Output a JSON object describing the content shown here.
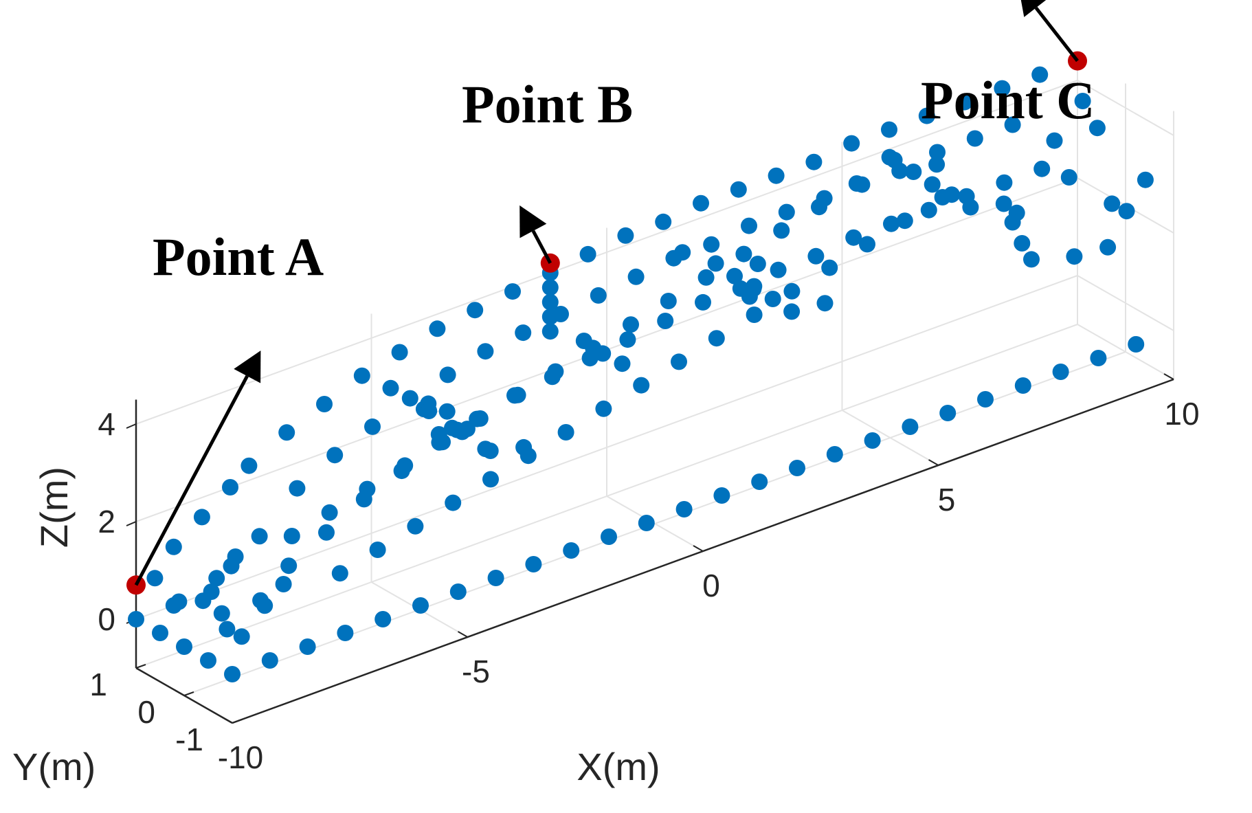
{
  "chart_data": {
    "type": "scatter3d",
    "xlabel": "X(m)",
    "ylabel": "Y(m)",
    "zlabel": "Z(m)",
    "xlim": [
      -10,
      10
    ],
    "ylim": [
      -1,
      1
    ],
    "zlim": [
      -1,
      4.5
    ],
    "xticks": [
      "-10",
      "-5",
      "0",
      "5",
      "10"
    ],
    "yticks": [
      "-1",
      "0",
      "1"
    ],
    "zticks": [
      "0",
      "2",
      "4"
    ],
    "grid": true,
    "marker_color": "#0072BD",
    "highlight_color": "#C00000",
    "annotations": [
      {
        "label": "Point A",
        "x": -10,
        "y": 1,
        "z": 0.7
      },
      {
        "label": "Point B",
        "x": -1.2,
        "y": 1,
        "z": 4.2
      },
      {
        "label": "Point C",
        "x": 10,
        "y": 1,
        "z": 4.4
      }
    ],
    "points": [
      [
        -10,
        1,
        0
      ],
      [
        -10,
        0.5,
        0
      ],
      [
        -10,
        0,
        0
      ],
      [
        -10,
        -0.5,
        0
      ],
      [
        -10,
        -1,
        0
      ],
      [
        -9.2,
        1,
        0
      ],
      [
        -9.2,
        -1,
        0
      ],
      [
        -8.4,
        1,
        0
      ],
      [
        -8.4,
        -1,
        0
      ],
      [
        -9.6,
        1,
        0.7
      ],
      [
        -9.2,
        1,
        1.2
      ],
      [
        -8.6,
        1,
        1.6
      ],
      [
        -8.0,
        1,
        2.0
      ],
      [
        -9.8,
        -1,
        0.7
      ],
      [
        -9.4,
        -1,
        1.3
      ],
      [
        -8.8,
        -1,
        1.8
      ],
      [
        -9.6,
        0,
        0.8
      ],
      [
        -9.0,
        0,
        1.3
      ],
      [
        -8.4,
        0,
        1.7
      ],
      [
        -9.6,
        0.5,
        0.5
      ],
      [
        -9.6,
        -0.5,
        0.5
      ],
      [
        -9.2,
        0,
        0.4
      ],
      [
        -8.8,
        0.5,
        0.7
      ],
      [
        -8.8,
        -0.5,
        0.7
      ],
      [
        -8.4,
        0.5,
        1.0
      ],
      [
        -8.4,
        -0.5,
        1.0
      ],
      [
        -7.6,
        -1,
        0
      ],
      [
        -6.8,
        -1,
        0
      ],
      [
        -6.0,
        -1,
        0
      ],
      [
        -5.2,
        -1,
        0
      ],
      [
        -4.4,
        -1,
        0
      ],
      [
        -3.6,
        -1,
        0
      ],
      [
        -2.8,
        -1,
        0
      ],
      [
        -2.0,
        -1,
        0
      ],
      [
        -1.2,
        -1,
        0
      ],
      [
        -0.4,
        -1,
        0
      ],
      [
        0.4,
        -1,
        0
      ],
      [
        1.2,
        -1,
        0
      ],
      [
        2.0,
        -1,
        0
      ],
      [
        2.8,
        -1,
        0
      ],
      [
        3.6,
        -1,
        0
      ],
      [
        4.4,
        -1,
        0
      ],
      [
        5.2,
        -1,
        0
      ],
      [
        6.0,
        -1,
        0
      ],
      [
        6.8,
        -1,
        0
      ],
      [
        7.6,
        -1,
        0
      ],
      [
        8.4,
        -1,
        0
      ],
      [
        9.2,
        -1,
        0
      ],
      [
        -7.6,
        1,
        2.3
      ],
      [
        -6.8,
        1,
        2.7
      ],
      [
        -6.0,
        1,
        3.0
      ],
      [
        -5.2,
        1,
        3.3
      ],
      [
        -4.4,
        1,
        3.5
      ],
      [
        -3.6,
        1,
        3.7
      ],
      [
        -2.8,
        1,
        3.8
      ],
      [
        -2.0,
        1,
        3.9
      ],
      [
        -1.2,
        1,
        4.0
      ],
      [
        -0.4,
        1,
        4.1
      ],
      [
        0.4,
        1,
        4.2
      ],
      [
        1.2,
        1,
        4.2
      ],
      [
        2.0,
        1,
        4.3
      ],
      [
        2.8,
        1,
        4.3
      ],
      [
        3.6,
        1,
        4.3
      ],
      [
        4.4,
        1,
        4.3
      ],
      [
        5.2,
        1,
        4.4
      ],
      [
        6.0,
        1,
        4.4
      ],
      [
        6.8,
        1,
        4.4
      ],
      [
        7.6,
        1,
        4.4
      ],
      [
        8.4,
        1,
        4.4
      ],
      [
        9.2,
        1,
        4.4
      ],
      [
        -8.0,
        -1,
        2.2
      ],
      [
        -7.2,
        -1,
        2.6
      ],
      [
        -6.4,
        -1,
        2.9
      ],
      [
        -5.6,
        -1,
        3.2
      ],
      [
        -4.8,
        -1,
        3.4
      ],
      [
        -4.0,
        -1,
        3.6
      ],
      [
        -3.2,
        -1,
        3.7
      ],
      [
        -2.4,
        -1,
        3.8
      ],
      [
        -1.6,
        -1,
        3.9
      ],
      [
        -0.8,
        -1,
        4.0
      ],
      [
        0.0,
        -1,
        4.1
      ],
      [
        0.8,
        -1,
        4.1
      ],
      [
        1.6,
        -1,
        4.2
      ],
      [
        2.4,
        -1,
        4.2
      ],
      [
        3.2,
        -1,
        4.3
      ],
      [
        4.0,
        -1,
        4.3
      ],
      [
        4.8,
        -1,
        4.3
      ],
      [
        5.6,
        -1,
        4.3
      ],
      [
        6.4,
        -1,
        4.3
      ],
      [
        7.2,
        -1,
        4.3
      ],
      [
        -7.6,
        0,
        2.4
      ],
      [
        -6.8,
        0,
        2.8
      ],
      [
        -6.0,
        0,
        3.1
      ],
      [
        -5.2,
        0,
        3.4
      ],
      [
        -4.4,
        0,
        3.6
      ],
      [
        -3.6,
        0,
        3.8
      ],
      [
        -2.8,
        0,
        3.9
      ],
      [
        -2.0,
        0,
        4.0
      ],
      [
        -1.2,
        0,
        4.1
      ],
      [
        -0.4,
        0,
        4.2
      ],
      [
        0.4,
        0,
        4.3
      ],
      [
        1.2,
        0,
        4.3
      ],
      [
        2.0,
        0,
        4.4
      ],
      [
        2.8,
        0,
        4.4
      ],
      [
        3.6,
        0,
        4.4
      ],
      [
        4.4,
        0,
        4.4
      ],
      [
        5.2,
        0,
        4.4
      ],
      [
        6.0,
        0,
        4.5
      ],
      [
        6.8,
        0,
        4.5
      ],
      [
        7.6,
        0,
        4.5
      ],
      [
        -7.2,
        0.5,
        1.0
      ],
      [
        -6.4,
        0.5,
        1.2
      ],
      [
        -5.6,
        0.5,
        1.4
      ],
      [
        -4.8,
        0.5,
        1.6
      ],
      [
        -4.0,
        0.5,
        1.8
      ],
      [
        -3.2,
        0.5,
        2.0
      ],
      [
        -2.4,
        0.5,
        2.2
      ],
      [
        -1.6,
        0.5,
        2.4
      ],
      [
        -0.8,
        0.5,
        2.6
      ],
      [
        0.0,
        0.5,
        2.8
      ],
      [
        0.8,
        0.5,
        3.0
      ],
      [
        1.6,
        0.5,
        3.2
      ],
      [
        2.4,
        0.5,
        3.4
      ],
      [
        3.2,
        0.5,
        3.6
      ],
      [
        4.0,
        0.5,
        3.8
      ],
      [
        4.8,
        0.5,
        4.0
      ],
      [
        5.6,
        0.5,
        4.2
      ],
      [
        -7.2,
        -0.5,
        0.8
      ],
      [
        -6.4,
        -0.5,
        1.0
      ],
      [
        -5.6,
        -0.5,
        1.2
      ],
      [
        -4.8,
        -0.5,
        1.4
      ],
      [
        -4.0,
        -0.5,
        1.6
      ],
      [
        -3.2,
        -0.5,
        1.8
      ],
      [
        -2.4,
        -0.5,
        2.0
      ],
      [
        -1.6,
        -0.5,
        2.2
      ],
      [
        -0.8,
        -0.5,
        2.4
      ],
      [
        0.0,
        -0.5,
        2.6
      ],
      [
        0.8,
        -0.5,
        2.8
      ],
      [
        1.6,
        -0.5,
        3.0
      ],
      [
        2.4,
        -0.5,
        3.2
      ],
      [
        3.2,
        -0.5,
        3.4
      ],
      [
        4.0,
        -0.5,
        3.6
      ],
      [
        4.8,
        -0.5,
        3.8
      ],
      [
        5.6,
        -0.5,
        4.0
      ],
      [
        -4.8,
        0,
        3.0
      ],
      [
        -4.6,
        0.3,
        2.8
      ],
      [
        -4.4,
        -0.3,
        2.6
      ],
      [
        -4.2,
        0,
        2.4
      ],
      [
        -4.0,
        0.3,
        2.2
      ],
      [
        -3.8,
        -0.3,
        2.0
      ],
      [
        -3.6,
        0,
        1.8
      ],
      [
        -4.6,
        -0.6,
        2.9
      ],
      [
        -4.2,
        0.6,
        2.6
      ],
      [
        -3.8,
        0.6,
        2.3
      ],
      [
        -3.4,
        -0.6,
        2.1
      ],
      [
        -5.0,
        0.6,
        3.2
      ],
      [
        -5.2,
        -0.6,
        3.0
      ],
      [
        -1.2,
        0.3,
        3.0
      ],
      [
        -1.0,
        -0.3,
        2.8
      ],
      [
        -0.8,
        0.3,
        2.6
      ],
      [
        1.6,
        0.3,
        3.6
      ],
      [
        1.8,
        -0.3,
        3.4
      ],
      [
        2.0,
        0.3,
        3.2
      ],
      [
        2.2,
        -0.3,
        3.0
      ],
      [
        2.4,
        0.3,
        2.8
      ],
      [
        2.6,
        -0.3,
        2.6
      ],
      [
        1.2,
        0.6,
        3.8
      ],
      [
        1.4,
        -0.6,
        3.5
      ],
      [
        2.8,
        0.6,
        3.0
      ],
      [
        3.0,
        -0.6,
        2.8
      ],
      [
        5.8,
        0.3,
        4.0
      ],
      [
        6.0,
        -0.3,
        3.8
      ],
      [
        6.2,
        0.3,
        3.6
      ],
      [
        6.4,
        -0.3,
        3.4
      ],
      [
        5.6,
        0.6,
        4.2
      ],
      [
        6.6,
        0.6,
        3.7
      ],
      [
        6.8,
        -0.6,
        3.5
      ],
      [
        7.6,
        0,
        2.5
      ],
      [
        7.8,
        0,
        2.0
      ],
      [
        8.0,
        0,
        1.6
      ],
      [
        8.2,
        0.5,
        2.2
      ],
      [
        8.4,
        -0.5,
        1.8
      ],
      [
        8.8,
        0,
        3.0
      ],
      [
        9.0,
        0.5,
        3.4
      ],
      [
        9.2,
        -0.5,
        2.6
      ],
      [
        9.4,
        0,
        3.8
      ],
      [
        9.6,
        0.5,
        4.0
      ],
      [
        8.6,
        -1,
        2.2
      ],
      [
        9.0,
        -1,
        2.8
      ],
      [
        9.4,
        -1,
        3.3
      ],
      [
        -1.2,
        1,
        3.7
      ],
      [
        -1.2,
        1,
        3.4
      ],
      [
        -1.2,
        1,
        3.1
      ],
      [
        -1.2,
        1,
        2.8
      ]
    ]
  }
}
